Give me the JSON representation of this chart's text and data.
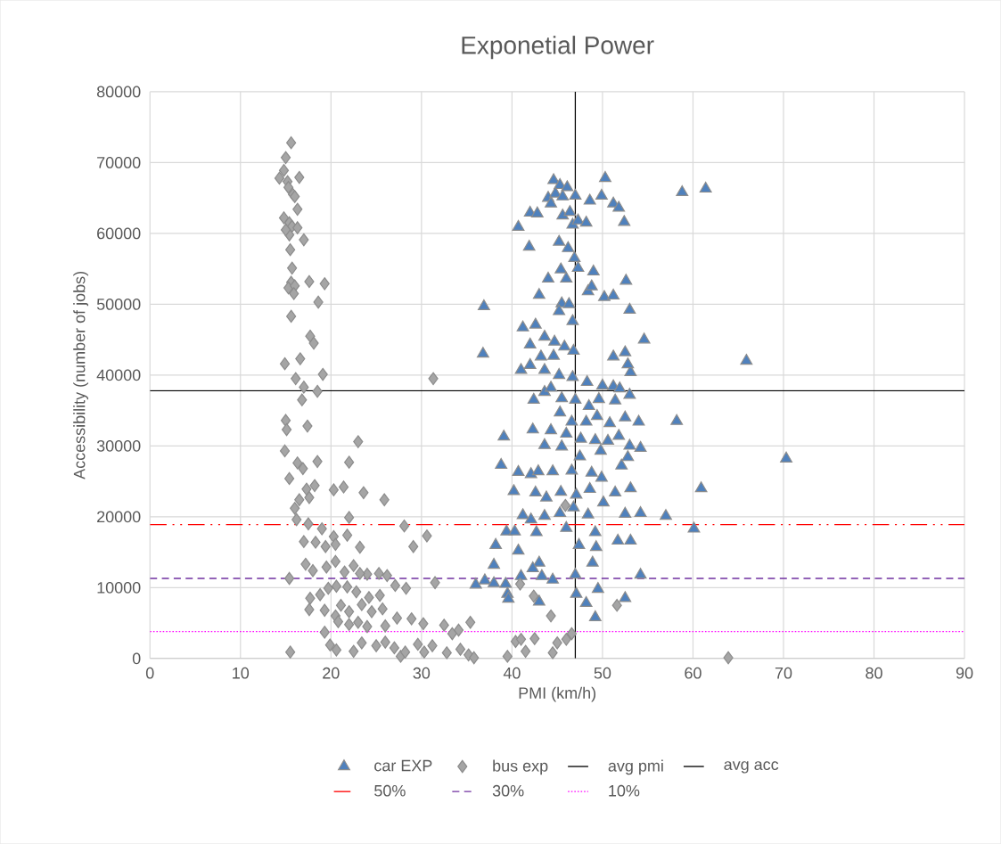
{
  "chart_data": {
    "type": "scatter",
    "title": "Exponetial Power",
    "xlabel": "PMI (km/h)",
    "ylabel": "Accessibility (number of jobs)",
    "xlim": [
      0,
      90
    ],
    "xticks": [
      0,
      10,
      20,
      30,
      40,
      50,
      60,
      70,
      80,
      90
    ],
    "ylim": [
      0,
      80000
    ],
    "yticks": [
      0,
      10000,
      20000,
      30000,
      40000,
      50000,
      60000,
      70000,
      80000
    ],
    "grid": true,
    "legend": "bottom",
    "series": [
      {
        "name": "car EXP",
        "color": "#4f81bd",
        "marker": "triangle",
        "x": [
          44.6,
          45.3,
          46.1,
          44.0,
          44.8,
          45.6,
          47.0,
          48.6,
          49.9,
          50.3,
          51.2,
          51.8,
          52.4,
          58.8,
          61.4,
          42.0,
          42.8,
          44.3,
          45.6,
          46.4,
          46.7,
          47.3,
          48.2,
          40.7,
          41.9,
          45.2,
          46.2,
          46.9,
          47.3,
          45.4,
          46.0,
          44.0,
          45.5,
          46.3,
          48.4,
          49.0,
          48.8,
          50.2,
          51.2,
          52.6,
          53.0,
          36.9,
          43.0,
          45.2,
          46.7,
          41.2,
          42.6,
          43.6,
          42.0,
          44.7,
          45.8,
          46.8,
          43.2,
          44.6,
          36.8,
          41.0,
          42.0,
          43.6,
          45.2,
          46.7,
          48.3,
          50.0,
          51.2,
          51.9,
          53.1,
          52.8,
          54.6,
          51.2,
          52.5,
          65.9,
          42.4,
          43.6,
          44.3,
          45.5,
          47.0,
          48.5,
          49.6,
          51.4,
          53.0,
          45.3,
          46.6,
          48.2,
          49.4,
          50.8,
          52.5,
          54.0,
          58.2,
          42.3,
          44.3,
          46.0,
          47.6,
          49.2,
          50.6,
          51.8,
          53.0,
          54.2,
          39.1,
          43.6,
          45.5,
          47.5,
          49.8,
          52.1,
          52.8,
          70.3,
          38.8,
          40.7,
          42.1,
          42.9,
          44.5,
          46.6,
          48.8,
          49.9,
          40.2,
          42.6,
          43.8,
          45.4,
          47.1,
          48.6,
          50.1,
          51.4,
          52.5,
          53.1,
          54.2,
          57.0,
          60.9,
          60.1,
          41.2,
          42.1,
          43.6,
          45.3,
          46.8,
          48.4,
          49.2,
          51.7,
          53.1,
          38.2,
          39.4,
          40.3,
          42.7,
          46.0,
          47.4,
          49.3,
          40.7,
          38.0,
          36.0,
          37.0,
          38.0,
          39.3,
          41.0,
          43.3,
          44.5,
          47.0,
          48.9,
          39.5,
          43.0,
          42.3,
          47.1,
          48.2,
          49.5,
          49.2,
          52.5,
          54.2,
          39.6,
          43.0
        ],
        "values": [
          67500,
          66800,
          66500,
          65000,
          65600,
          65200,
          65300,
          64600,
          65300,
          67800,
          64200,
          63600,
          61600,
          65800,
          66300,
          62900,
          62800,
          64200,
          62500,
          63000,
          61200,
          61800,
          61500,
          60900,
          58100,
          58800,
          57900,
          56500,
          55100,
          54900,
          53600,
          53600,
          50100,
          50000,
          51800,
          54600,
          52500,
          51000,
          51200,
          53300,
          49200,
          49700,
          51300,
          49000,
          47600,
          46700,
          47100,
          45400,
          44300,
          44700,
          44000,
          43400,
          42600,
          42700,
          43000,
          40700,
          41400,
          40700,
          40000,
          39700,
          39000,
          38500,
          38400,
          38100,
          40400,
          41500,
          45000,
          42600,
          43200,
          42000,
          36500,
          37600,
          38200,
          36700,
          36500,
          35600,
          36600,
          36400,
          37200,
          34700,
          33400,
          33400,
          34200,
          33200,
          34000,
          33400,
          33500,
          32300,
          32200,
          31700,
          31000,
          30800,
          30700,
          31400,
          30000,
          29700,
          31300,
          30100,
          29900,
          28500,
          29300,
          27200,
          28400,
          28200,
          27300,
          26300,
          26000,
          26400,
          26400,
          26500,
          26200,
          25500,
          23600,
          23400,
          22700,
          23500,
          23100,
          23900,
          22000,
          23400,
          20400,
          24000,
          20500,
          20100,
          24000,
          18300,
          20200,
          19600,
          20100,
          20500,
          21300,
          20300,
          17800,
          16600,
          16600,
          16000,
          17900,
          17900,
          17800,
          18400,
          16000,
          15700,
          15200,
          13200,
          10400,
          11000,
          10600,
          10500,
          11600,
          11600,
          11100,
          11800,
          13500,
          9100,
          13500,
          12700,
          9100,
          7800,
          9800,
          5800,
          8500,
          11800,
          8400,
          8000
        ]
      },
      {
        "name": "bus exp",
        "color": "#a5a5a5",
        "marker": "diamond",
        "x": [
          15.6,
          15.0,
          14.8,
          14.3,
          15.2,
          16.5,
          15.3,
          15.8,
          16.0,
          14.8,
          15.4,
          16.3,
          15.7,
          16.3,
          17.0,
          15.4,
          15.5,
          15.0,
          15.7,
          15.6,
          15.3,
          16.0,
          15.9,
          17.6,
          19.3,
          18.6,
          15.6,
          17.7,
          18.1,
          14.9,
          16.6,
          19.1,
          16.1,
          17.0,
          18.5,
          16.8,
          15.0,
          15.1,
          17.4,
          14.9,
          15.4,
          16.3,
          16.9,
          18.5,
          18.2,
          17.3,
          16.0,
          16.5,
          17.6,
          20.3,
          21.4,
          22.0,
          23.0,
          23.6,
          25.9,
          28.1,
          29.1,
          30.6,
          31.3,
          16.2,
          17.5,
          19.0,
          20.3,
          21.8,
          22.0,
          23.2,
          17.0,
          18.3,
          19.4,
          20.5,
          22.5,
          24.0,
          15.4,
          17.2,
          18.0,
          19.5,
          20.5,
          21.5,
          23.2,
          25.3,
          26.2,
          27.1,
          28.3,
          31.5,
          17.7,
          18.8,
          19.7,
          20.6,
          21.8,
          22.8,
          24.2,
          25.4,
          17.6,
          19.3,
          20.5,
          21.1,
          22.0,
          23.4,
          24.5,
          25.7,
          19.3,
          20.8,
          22.0,
          23.0,
          24.0,
          26.0,
          27.3,
          28.9,
          30.2,
          32.5,
          34.1,
          35.4,
          19.9,
          20.6,
          22.5,
          23.4,
          25.0,
          26.0,
          27.0,
          27.7,
          28.2,
          29.6,
          30.3,
          31.2,
          32.8,
          33.4,
          34.3,
          35.2,
          35.8,
          39.5,
          40.4,
          41.0,
          41.5,
          42.5,
          44.3,
          42.4,
          45.0,
          46.0,
          46.6,
          44.5,
          51.6,
          40.9,
          63.9,
          15.5,
          45.9
        ],
        "values": [
          72800,
          70700,
          68900,
          67800,
          67300,
          67900,
          66500,
          65500,
          65200,
          62200,
          61500,
          63400,
          61000,
          60800,
          59100,
          59800,
          57700,
          60500,
          55100,
          53100,
          52300,
          52600,
          51500,
          53200,
          52900,
          50300,
          48300,
          45500,
          44500,
          41600,
          42300,
          40100,
          39500,
          38300,
          37700,
          36500,
          33600,
          32300,
          32800,
          29300,
          25400,
          27600,
          26800,
          27800,
          24400,
          23900,
          21200,
          22400,
          22700,
          23800,
          24200,
          27700,
          30600,
          23400,
          22400,
          18700,
          15800,
          17300,
          39500,
          19600,
          19000,
          18300,
          17200,
          17400,
          19900,
          15700,
          16500,
          16400,
          15800,
          16100,
          13100,
          11900,
          11300,
          13300,
          12400,
          12900,
          13700,
          12200,
          12000,
          12000,
          11700,
          10300,
          9900,
          10700,
          8500,
          9000,
          9900,
          10200,
          10100,
          9400,
          8600,
          8900,
          6900,
          6800,
          6000,
          7500,
          6600,
          7600,
          6600,
          7000,
          3700,
          5200,
          4800,
          5100,
          4500,
          4600,
          5700,
          5600,
          4900,
          4700,
          4000,
          5100,
          1900,
          1200,
          1000,
          2200,
          1800,
          2300,
          1500,
          300,
          900,
          2000,
          900,
          1800,
          800,
          3500,
          1300,
          500,
          100,
          300,
          2400,
          2700,
          1000,
          2800,
          6000,
          8800,
          2200,
          2700,
          3500,
          800,
          7500,
          10500,
          100,
          900,
          21600
        ]
      },
      {
        "name": "avg pmi",
        "type": "line",
        "color": "#000000",
        "line_style": "solid",
        "x": [
          47,
          47
        ],
        "values": [
          0,
          80000
        ]
      },
      {
        "name": "avg acc",
        "type": "line",
        "color": "#000000",
        "line_style": "solid",
        "x": [
          0,
          90
        ],
        "values": [
          37800,
          37800
        ]
      },
      {
        "name": "50%",
        "type": "line",
        "color": "#ff0000",
        "line_style": "dashdotdot",
        "x": [
          0,
          90
        ],
        "values": [
          18900,
          18900
        ]
      },
      {
        "name": "30%",
        "type": "line",
        "color": "#7030a0",
        "line_style": "dashed",
        "x": [
          0,
          90
        ],
        "values": [
          11300,
          11300
        ]
      },
      {
        "name": "10%",
        "type": "line",
        "color": "#ff00ff",
        "line_style": "dotted",
        "x": [
          0,
          90
        ],
        "values": [
          3800,
          3800
        ]
      }
    ]
  }
}
